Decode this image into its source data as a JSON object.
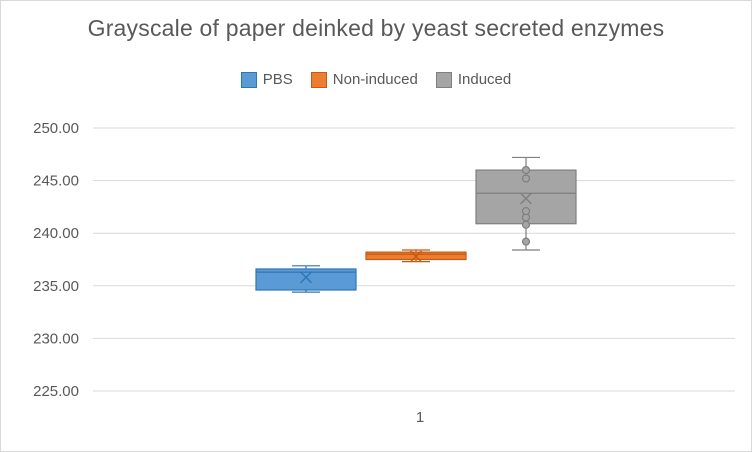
{
  "chart_data": {
    "type": "boxplot",
    "title": "Grayscale of paper deinked by yeast secreted enzymes",
    "categories": [
      "1"
    ],
    "ylim": [
      225,
      250
    ],
    "y_ticks": [
      "225.00",
      "230.00",
      "235.00",
      "240.00",
      "245.00",
      "250.00"
    ],
    "grid": true,
    "legend_position": "top",
    "series": [
      {
        "name": "PBS",
        "color": "#5b9bd5",
        "stroke": "#2e75b6",
        "min": 234.4,
        "q1": 234.6,
        "median": 236.3,
        "q3": 236.6,
        "max": 236.9,
        "mean": 235.8,
        "points": []
      },
      {
        "name": "Non-induced",
        "color": "#ed7d31",
        "stroke": "#c55a11",
        "min": 237.3,
        "q1": 237.5,
        "median": 238.0,
        "q3": 238.2,
        "max": 238.4,
        "mean": 237.8,
        "points": []
      },
      {
        "name": "Induced",
        "color": "#a5a5a5",
        "stroke": "#7f7f7f",
        "min": 238.4,
        "q1": 240.9,
        "median": 243.8,
        "q3": 246.0,
        "max": 247.2,
        "mean": 243.3,
        "points": [
          239.2,
          240.8,
          241.5,
          242.1,
          245.2,
          246.0
        ]
      }
    ]
  }
}
